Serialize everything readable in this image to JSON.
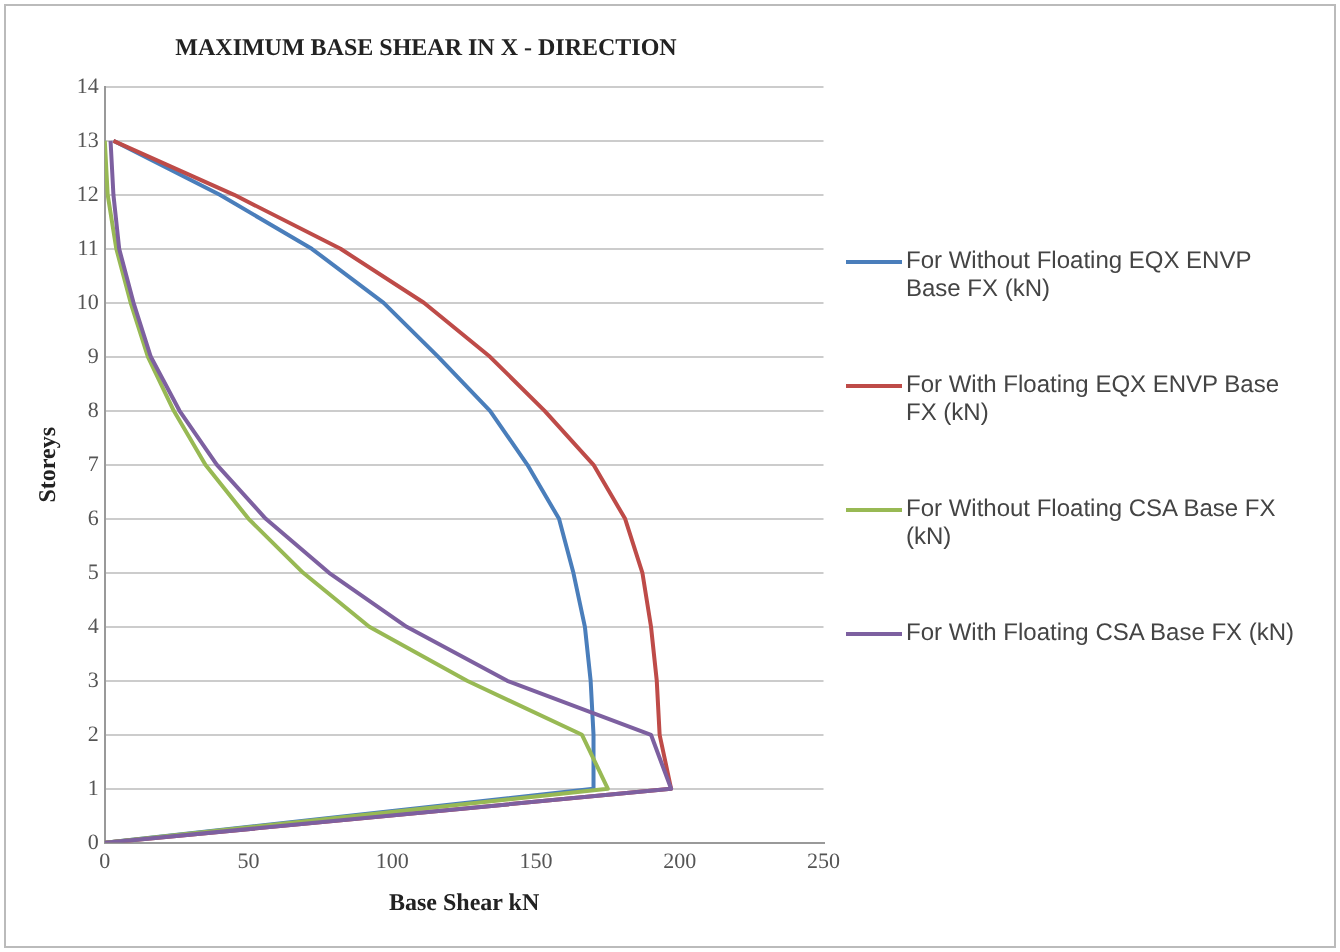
{
  "chart_data": {
    "type": "line",
    "title": "MAXIMUM BASE SHEAR IN X - DIRECTION",
    "xlabel": "Base Shear kN",
    "ylabel": "Storeys",
    "xlim": [
      0,
      250
    ],
    "xticks": [
      0,
      50,
      100,
      150,
      200,
      250
    ],
    "ylim": [
      0,
      14
    ],
    "yticks": [
      0,
      1,
      2,
      3,
      4,
      5,
      6,
      7,
      8,
      9,
      10,
      11,
      12,
      13,
      14
    ],
    "grid": "y",
    "legend": "right",
    "marker": "none",
    "series": [
      {
        "name": "For Without Floating EQX ENVP Base FX (kN)",
        "color": "#4a7ebb",
        "x": [
          0,
          170,
          170,
          169,
          167,
          163,
          158,
          147,
          134,
          116,
          97,
          72,
          40,
          3
        ],
        "values": [
          0,
          1,
          2,
          3,
          4,
          5,
          6,
          7,
          8,
          9,
          10,
          11,
          12,
          13
        ]
      },
      {
        "name": "For With Floating EQX ENVP Base FX (kN)",
        "color": "#be4b48",
        "x": [
          0,
          197,
          193,
          192,
          190,
          187,
          181,
          170,
          153,
          134,
          111,
          82,
          45,
          3
        ],
        "values": [
          0,
          1,
          2,
          3,
          4,
          5,
          6,
          7,
          8,
          9,
          10,
          11,
          12,
          13
        ]
      },
      {
        "name": "For Without Floating CSA Base FX (kN)",
        "color": "#98b954",
        "x": [
          0,
          175,
          166,
          126,
          92,
          69,
          50,
          35,
          24,
          15,
          9,
          4,
          1,
          0
        ],
        "values": [
          0,
          1,
          2,
          3,
          4,
          5,
          6,
          7,
          8,
          9,
          10,
          11,
          12,
          13
        ]
      },
      {
        "name": "For With Floating CSA Base FX (kN)",
        "color": "#7d60a0",
        "x": [
          0,
          197,
          190,
          140,
          105,
          78,
          56,
          39,
          26,
          16,
          10,
          5,
          3,
          2
        ],
        "values": [
          0,
          1,
          2,
          3,
          4,
          5,
          6,
          7,
          8,
          9,
          10,
          11,
          12,
          13
        ]
      }
    ]
  }
}
